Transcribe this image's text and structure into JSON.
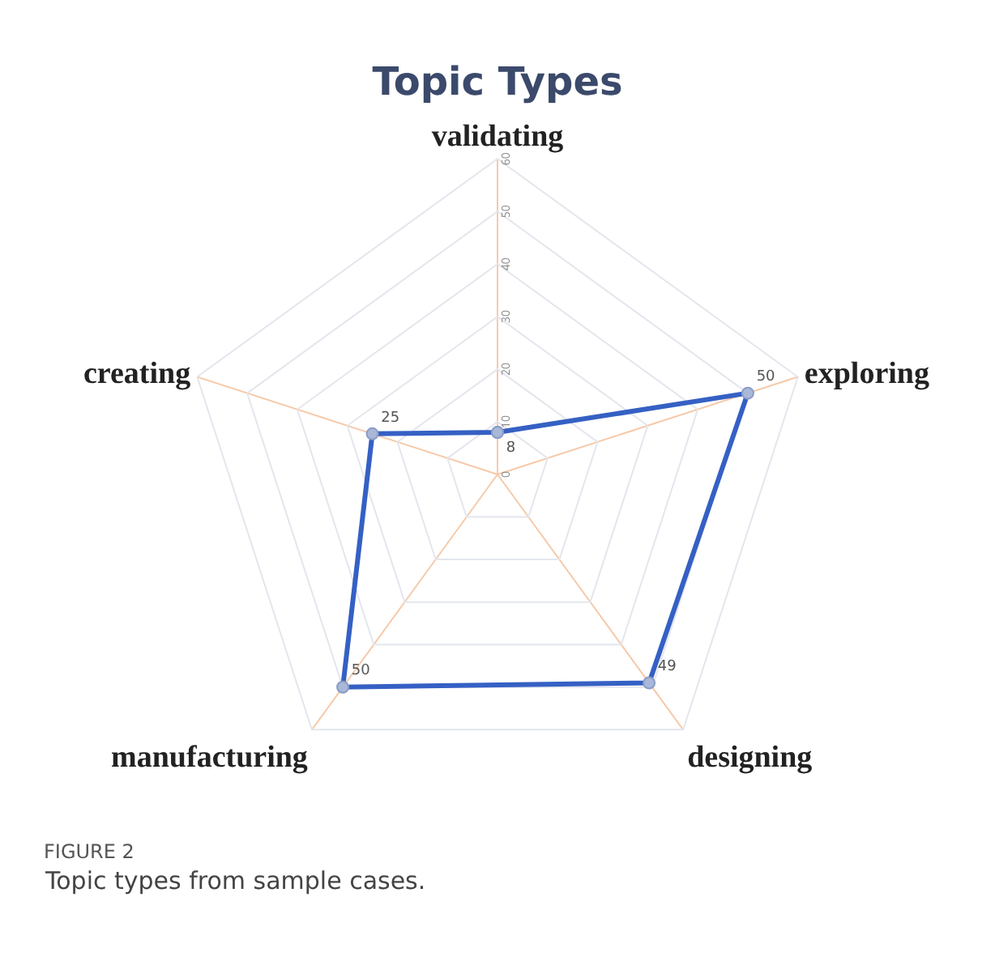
{
  "chart_data": {
    "type": "radar",
    "title": "Topic Types",
    "categories": [
      "validating",
      "exploring",
      "designing",
      "manufacturing",
      "creating"
    ],
    "series": [
      {
        "color": "#3560c4",
        "values": [
          8,
          50,
          49,
          50,
          25
        ]
      }
    ],
    "ylim": [
      0,
      60
    ],
    "yticks": [
      0,
      10,
      20,
      30,
      40,
      50,
      60
    ],
    "grid": true,
    "marker": "circle",
    "data_labels": true,
    "annotations": [
      "FIGURE 2",
      "Topic types from sample cases."
    ]
  }
}
